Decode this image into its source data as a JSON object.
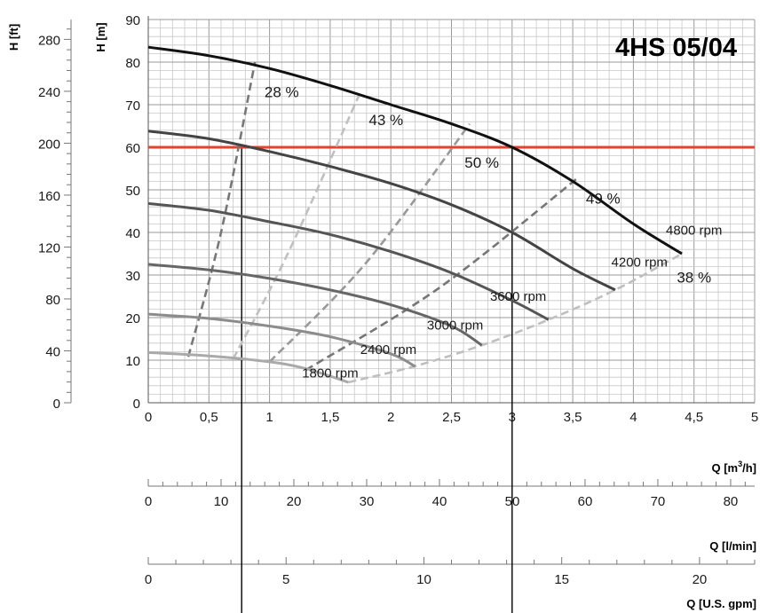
{
  "chart_data": {
    "type": "line",
    "title": "4HS 05/04",
    "x_axes": [
      {
        "label_main": "Q [m",
        "label_sup": "3",
        "label_end": "/h]",
        "ticks": [
          "0",
          "0,5",
          "1",
          "1,5",
          "2",
          "2,5",
          "3",
          "3,5",
          "4",
          "4,5",
          "5"
        ],
        "range": [
          0,
          5
        ],
        "step": 0.5
      },
      {
        "label": "Q [l/min]",
        "ticks": [
          "0",
          "10",
          "20",
          "30",
          "40",
          "50",
          "60",
          "70",
          "80"
        ],
        "range": [
          0,
          83.3
        ],
        "step": 10
      },
      {
        "label": "Q [U.S. gpm]",
        "ticks": [
          "0",
          "5",
          "10",
          "15",
          "20"
        ],
        "range": [
          0,
          22.0
        ],
        "step": 5
      }
    ],
    "y_axes": [
      {
        "label": "H [m]",
        "ticks": [
          "0",
          "10",
          "20",
          "30",
          "40",
          "50",
          "60",
          "70",
          "80",
          "90"
        ],
        "range": [
          0,
          90
        ],
        "step": 10
      },
      {
        "label": "H [ft]",
        "ticks": [
          "0",
          "40",
          "80",
          "120",
          "160",
          "200",
          "240",
          "280"
        ],
        "range": [
          0,
          295.3
        ],
        "step": 40
      }
    ],
    "grid": true,
    "series": [
      {
        "name": "4800 rpm",
        "label": "4800 rpm",
        "color": "#111111",
        "x": [
          0,
          0.5,
          1,
          1.5,
          2,
          2.5,
          3,
          3.5,
          4,
          4.4
        ],
        "y": [
          83.5,
          81.5,
          78.5,
          74.5,
          70,
          65.5,
          60,
          52,
          42,
          35
        ]
      },
      {
        "name": "4200 rpm",
        "label": "4200 rpm",
        "color": "#444444",
        "x": [
          0,
          0.5,
          1,
          1.5,
          2,
          2.5,
          3,
          3.5,
          3.85
        ],
        "y": [
          63.8,
          62,
          59,
          55.5,
          51.5,
          46.5,
          40,
          31.5,
          26.5
        ]
      },
      {
        "name": "3600 rpm",
        "label": "3600 rpm",
        "color": "#555555",
        "x": [
          0,
          0.5,
          1,
          1.5,
          2,
          2.5,
          3,
          3.3
        ],
        "y": [
          46.8,
          45.2,
          42.5,
          39.5,
          35.5,
          30.5,
          24,
          19.5
        ]
      },
      {
        "name": "3000 rpm",
        "label": "3000 rpm",
        "color": "#666666",
        "x": [
          0,
          0.5,
          1,
          1.5,
          2,
          2.5,
          2.75
        ],
        "y": [
          32.5,
          31.2,
          29.2,
          26.5,
          23,
          18,
          13.5
        ]
      },
      {
        "name": "2400 rpm",
        "label": "2400 rpm",
        "color": "#8c8c8c",
        "x": [
          0,
          0.5,
          1,
          1.5,
          2,
          2.2
        ],
        "y": [
          20.8,
          19.8,
          18,
          15.5,
          11.5,
          8.5
        ]
      },
      {
        "name": "1800 rpm",
        "label": "1800 rpm",
        "color": "#aaaaaa",
        "x": [
          0,
          0.5,
          1,
          1.3,
          1.65
        ],
        "y": [
          11.8,
          11,
          9.6,
          8,
          4.8
        ]
      }
    ],
    "efficiency_lines": [
      {
        "label": "28 %",
        "color": "#777777",
        "x": [
          0.33,
          0.6,
          0.88
        ],
        "y": [
          10.8,
          40,
          80
        ]
      },
      {
        "label": "43 %",
        "color": "#c0c0c0",
        "x": [
          0.7,
          1.15,
          1.75
        ],
        "y": [
          10.3,
          35,
          73
        ]
      },
      {
        "label": "50 %",
        "color": "#999999",
        "x": [
          1.0,
          1.8,
          2.65
        ],
        "y": [
          9.6,
          33,
          65.5
        ]
      },
      {
        "label": "49 %",
        "color": "#777777",
        "x": [
          1.3,
          2.4,
          3.55
        ],
        "y": [
          7.7,
          27,
          53
        ]
      },
      {
        "label": "38 %",
        "color": "#bfbfbf",
        "x": [
          1.65,
          2.2,
          2.75,
          3.3,
          3.85,
          4.4
        ],
        "y": [
          4.8,
          8.6,
          13.5,
          19.5,
          26.5,
          35
        ]
      }
    ],
    "duty_point": {
      "q": 3.0,
      "h": 60,
      "color": "#e8412b"
    },
    "reference_q": [
      0.77,
      3.0
    ]
  }
}
